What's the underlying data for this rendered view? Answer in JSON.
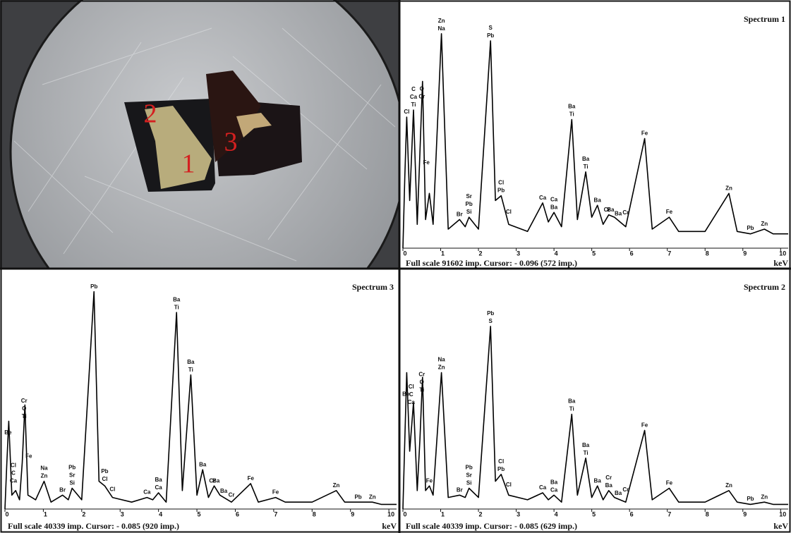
{
  "photo": {
    "labels": [
      "1",
      "2",
      "3"
    ]
  },
  "chart_data": [
    {
      "type": "line",
      "title": "Spectrum 1",
      "footer": "Full scale 91602 imp. Cursor: - 0.096 (572 imp.)",
      "x_label": "keV",
      "color": "#000000",
      "xlim": [
        0,
        10.2
      ],
      "ylim": [
        0,
        100
      ],
      "xticks": [
        0,
        1,
        2,
        3,
        4,
        5,
        6,
        7,
        8,
        9,
        10
      ],
      "x": [
        0,
        0.05,
        0.1,
        0.18,
        0.28,
        0.38,
        0.45,
        0.52,
        0.6,
        0.7,
        0.8,
        1.02,
        1.2,
        1.5,
        1.65,
        1.75,
        2.0,
        2.32,
        2.45,
        2.6,
        2.8,
        3.3,
        3.7,
        3.85,
        4.0,
        4.2,
        4.47,
        4.62,
        4.84,
        5.0,
        5.15,
        5.3,
        5.45,
        5.6,
        5.9,
        6.4,
        6.6,
        7.05,
        7.3,
        8.0,
        8.63,
        8.85,
        9.2,
        9.57,
        9.8,
        10.2
      ],
      "values": [
        0,
        30,
        55,
        20,
        58,
        10,
        40,
        70,
        12,
        23,
        10,
        90,
        8,
        12,
        9,
        13,
        8,
        87,
        20,
        22,
        10,
        7,
        19,
        11,
        15,
        9,
        54,
        12,
        32,
        13,
        18,
        10,
        14,
        13,
        9,
        46,
        8,
        13,
        7,
        7,
        23,
        7,
        6,
        8,
        6,
        6
      ],
      "peaks": [
        {
          "x": 0.1,
          "labels": [
            "Cl"
          ]
        },
        {
          "x": 0.28,
          "labels": [
            "C",
            "Ca",
            "Ti"
          ]
        },
        {
          "x": 0.5,
          "labels": [
            "O",
            "Cr"
          ]
        },
        {
          "x": 0.62,
          "labels": [
            "Fe"
          ]
        },
        {
          "x": 1.02,
          "labels": [
            "Zn",
            "Na"
          ]
        },
        {
          "x": 1.5,
          "labels": [
            "Br"
          ]
        },
        {
          "x": 1.75,
          "labels": [
            "Sr",
            "Pb",
            "Si"
          ]
        },
        {
          "x": 2.32,
          "labels": [
            "S",
            "Pb"
          ]
        },
        {
          "x": 2.6,
          "labels": [
            "Cl",
            "Pb"
          ]
        },
        {
          "x": 2.8,
          "labels": [
            "Cl"
          ]
        },
        {
          "x": 3.7,
          "labels": [
            "Ca"
          ]
        },
        {
          "x": 4.0,
          "labels": [
            "Ca",
            "Ba"
          ]
        },
        {
          "x": 4.47,
          "labels": [
            "Ba",
            "Ti"
          ]
        },
        {
          "x": 4.84,
          "labels": [
            "Ba",
            "Ti"
          ]
        },
        {
          "x": 5.15,
          "labels": [
            "Ba"
          ]
        },
        {
          "x": 5.4,
          "labels": [
            "Cr"
          ]
        },
        {
          "x": 5.5,
          "labels": [
            "Ba"
          ]
        },
        {
          "x": 5.7,
          "labels": [
            "Ba"
          ]
        },
        {
          "x": 5.9,
          "labels": [
            "Cr"
          ]
        },
        {
          "x": 6.4,
          "labels": [
            "Fe"
          ]
        },
        {
          "x": 7.05,
          "labels": [
            "Fe"
          ]
        },
        {
          "x": 8.63,
          "labels": [
            "Zn"
          ]
        },
        {
          "x": 9.2,
          "labels": [
            "Pb"
          ]
        },
        {
          "x": 9.57,
          "labels": [
            "Zn"
          ]
        }
      ]
    },
    {
      "type": "line",
      "title": "Spectrum 3",
      "footer": "Full scale 40339 imp. Cursor: - 0.085 (920 imp.)",
      "x_label": "keV",
      "color": "#000000",
      "xlim": [
        0,
        10.2
      ],
      "ylim": [
        0,
        100
      ],
      "xticks": [
        0,
        1,
        2,
        3,
        4,
        5,
        6,
        7,
        8,
        9,
        10
      ],
      "x": [
        0,
        0.05,
        0.1,
        0.18,
        0.28,
        0.38,
        0.45,
        0.52,
        0.6,
        0.7,
        0.8,
        1.02,
        1.2,
        1.5,
        1.65,
        1.75,
        2.0,
        2.32,
        2.45,
        2.6,
        2.8,
        3.3,
        3.7,
        3.85,
        4.0,
        4.2,
        4.47,
        4.62,
        4.84,
        5.0,
        5.15,
        5.3,
        5.45,
        5.6,
        5.9,
        6.4,
        6.6,
        7.05,
        7.3,
        8.0,
        8.63,
        8.85,
        9.2,
        9.57,
        9.8,
        10.2
      ],
      "values": [
        0,
        20,
        38,
        6,
        8,
        4,
        20,
        45,
        6,
        5,
        4,
        12,
        3,
        6,
        4,
        9,
        4,
        94,
        12,
        10,
        5,
        3,
        5,
        4,
        7,
        3,
        85,
        8,
        58,
        6,
        17,
        5,
        10,
        6,
        3,
        11,
        3,
        5,
        3,
        3,
        8,
        3,
        3,
        3,
        2,
        2
      ],
      "peaks": [
        {
          "x": 0.08,
          "labels": [
            "Be"
          ]
        },
        {
          "x": 0.22,
          "labels": [
            "Cl",
            "C",
            "Ca"
          ]
        },
        {
          "x": 0.5,
          "labels": [
            "Cr",
            "O",
            "Ti"
          ]
        },
        {
          "x": 0.62,
          "labels": [
            "Fe"
          ]
        },
        {
          "x": 1.02,
          "labels": [
            "Na",
            "Zn"
          ]
        },
        {
          "x": 1.5,
          "labels": [
            "Br"
          ]
        },
        {
          "x": 1.75,
          "labels": [
            "Pb",
            "Sr",
            "Si"
          ]
        },
        {
          "x": 2.32,
          "labels": [
            "Pb"
          ]
        },
        {
          "x": 2.6,
          "labels": [
            "Pb",
            "Cl"
          ]
        },
        {
          "x": 2.8,
          "labels": [
            "Cl"
          ]
        },
        {
          "x": 3.7,
          "labels": [
            "Ca"
          ]
        },
        {
          "x": 4.0,
          "labels": [
            "Ba",
            "Ca"
          ]
        },
        {
          "x": 4.47,
          "labels": [
            "Ba",
            "Ti"
          ]
        },
        {
          "x": 4.84,
          "labels": [
            "Ba",
            "Ti"
          ]
        },
        {
          "x": 5.15,
          "labels": [
            "Ba"
          ]
        },
        {
          "x": 5.4,
          "labels": [
            "Cr"
          ]
        },
        {
          "x": 5.5,
          "labels": [
            "Ba"
          ]
        },
        {
          "x": 5.7,
          "labels": [
            "Ba"
          ]
        },
        {
          "x": 5.9,
          "labels": [
            "Cr"
          ]
        },
        {
          "x": 6.4,
          "labels": [
            "Fe"
          ]
        },
        {
          "x": 7.05,
          "labels": [
            "Fe"
          ]
        },
        {
          "x": 8.63,
          "labels": [
            "Zn"
          ]
        },
        {
          "x": 9.2,
          "labels": [
            "Pb"
          ]
        },
        {
          "x": 9.57,
          "labels": [
            "Zn"
          ]
        }
      ]
    },
    {
      "type": "line",
      "title": "Spectrum 2",
      "footer": "Full scale 40339 imp. Cursor: - 0.085 (629 imp.)",
      "x_label": "keV",
      "color": "#000000",
      "xlim": [
        0,
        10.2
      ],
      "ylim": [
        0,
        100
      ],
      "xticks": [
        0,
        1,
        2,
        3,
        4,
        5,
        6,
        7,
        8,
        9,
        10
      ],
      "x": [
        0,
        0.05,
        0.1,
        0.18,
        0.28,
        0.38,
        0.45,
        0.52,
        0.6,
        0.7,
        0.8,
        1.02,
        1.2,
        1.5,
        1.65,
        1.75,
        2.0,
        2.32,
        2.45,
        2.6,
        2.8,
        3.3,
        3.7,
        3.85,
        4.0,
        4.2,
        4.47,
        4.62,
        4.84,
        5.0,
        5.15,
        5.3,
        5.45,
        5.6,
        5.9,
        6.4,
        6.6,
        7.05,
        7.3,
        8.0,
        8.63,
        8.85,
        9.2,
        9.57,
        9.8,
        10.2
      ],
      "values": [
        0,
        30,
        59,
        25,
        46,
        8,
        30,
        57,
        8,
        10,
        6,
        59,
        5,
        6,
        5,
        9,
        5,
        79,
        12,
        15,
        6,
        4,
        7,
        4,
        6,
        3,
        41,
        6,
        22,
        5,
        10,
        4,
        8,
        5,
        3,
        34,
        4,
        9,
        3,
        3,
        8,
        3,
        2,
        3,
        2,
        2
      ],
      "peaks": [
        {
          "x": 0.08,
          "labels": [
            "Be"
          ]
        },
        {
          "x": 0.22,
          "labels": [
            "Cl",
            "C",
            "Ca"
          ]
        },
        {
          "x": 0.5,
          "labels": [
            "Cr",
            "O",
            "Ti"
          ]
        },
        {
          "x": 0.7,
          "labels": [
            "Fe"
          ]
        },
        {
          "x": 1.02,
          "labels": [
            "Na",
            "Zn"
          ]
        },
        {
          "x": 1.5,
          "labels": [
            "Br"
          ]
        },
        {
          "x": 1.75,
          "labels": [
            "Pb",
            "Sr",
            "Si"
          ]
        },
        {
          "x": 2.32,
          "labels": [
            "Pb",
            "S"
          ]
        },
        {
          "x": 2.6,
          "labels": [
            "Cl",
            "Pb"
          ]
        },
        {
          "x": 2.8,
          "labels": [
            "Cl"
          ]
        },
        {
          "x": 3.7,
          "labels": [
            "Ca"
          ]
        },
        {
          "x": 4.0,
          "labels": [
            "Ba",
            "Ca"
          ]
        },
        {
          "x": 4.47,
          "labels": [
            "Ba",
            "Ti"
          ]
        },
        {
          "x": 4.84,
          "labels": [
            "Ba",
            "Ti"
          ]
        },
        {
          "x": 5.15,
          "labels": [
            "Ba"
          ]
        },
        {
          "x": 5.45,
          "labels": [
            "Cr",
            "Ba"
          ]
        },
        {
          "x": 5.7,
          "labels": [
            "Ba"
          ]
        },
        {
          "x": 5.9,
          "labels": [
            "Cr"
          ]
        },
        {
          "x": 6.4,
          "labels": [
            "Fe"
          ]
        },
        {
          "x": 7.05,
          "labels": [
            "Fe"
          ]
        },
        {
          "x": 8.63,
          "labels": [
            "Zn"
          ]
        },
        {
          "x": 9.2,
          "labels": [
            "Pb"
          ]
        },
        {
          "x": 9.57,
          "labels": [
            "Zn"
          ]
        }
      ]
    }
  ]
}
